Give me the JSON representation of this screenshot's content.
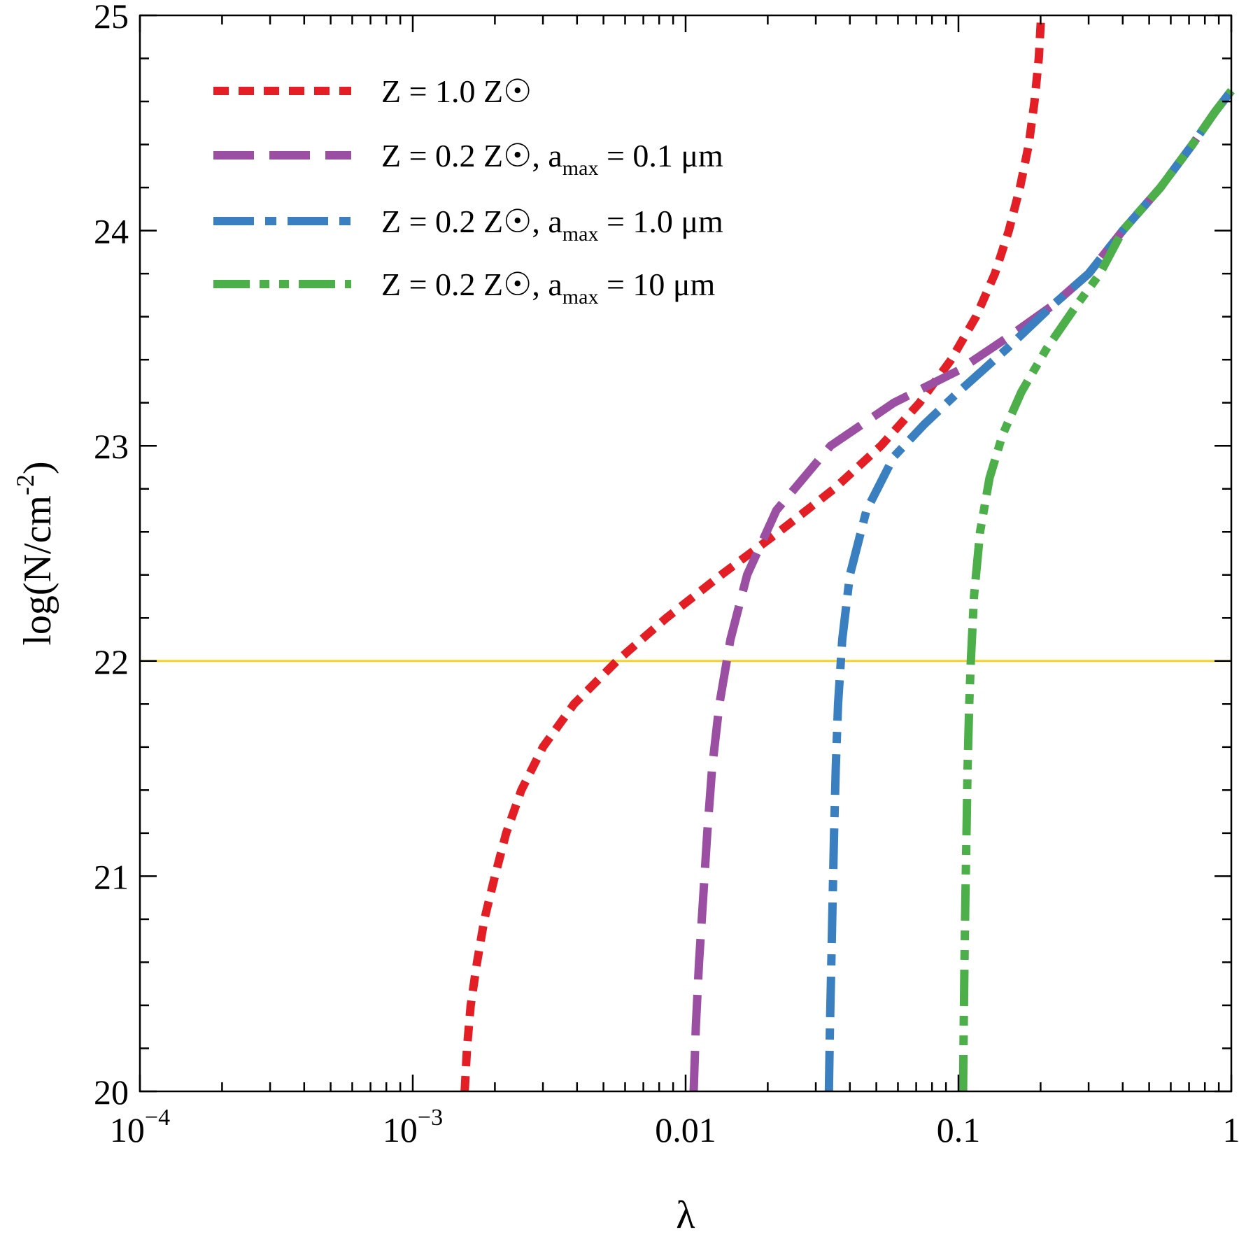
{
  "chart_data": {
    "type": "line",
    "title": "",
    "xlabel": "λ",
    "ylabel": {
      "main": "log(N/cm",
      "sup": "-2",
      "close": ")"
    },
    "xscale": "log",
    "xlim": [
      0.0001,
      1
    ],
    "ylim": [
      20,
      25
    ],
    "x_ticks": [
      {
        "value": 0.0001,
        "base": "10",
        "exp": "−4"
      },
      {
        "value": 0.001,
        "base": "10",
        "exp": "−3"
      },
      {
        "value": 0.01,
        "text": "0.01"
      },
      {
        "value": 0.1,
        "text": "0.1"
      },
      {
        "value": 1,
        "text": "1"
      }
    ],
    "y_ticks": [
      {
        "value": 20,
        "text": "20"
      },
      {
        "value": 21,
        "text": "21"
      },
      {
        "value": 22,
        "text": "22"
      },
      {
        "value": 23,
        "text": "23"
      },
      {
        "value": 24,
        "text": "24"
      },
      {
        "value": 25,
        "text": "25"
      }
    ],
    "reference_line": {
      "y": 22,
      "color": "#f5d327"
    },
    "legend_position": "top-left",
    "series": [
      {
        "name": "Z = 1.0 Z☉",
        "legend": {
          "pre": "Z = 1.0 Z☉",
          "sub": "",
          "post": ""
        },
        "color": "#e31e24",
        "style": "dotted",
        "points": [
          [
            0.00155,
            20.0
          ],
          [
            0.00158,
            20.2
          ],
          [
            0.00163,
            20.4
          ],
          [
            0.00172,
            20.6
          ],
          [
            0.00183,
            20.8
          ],
          [
            0.002,
            21.0
          ],
          [
            0.0022,
            21.2
          ],
          [
            0.0025,
            21.4
          ],
          [
            0.003,
            21.6
          ],
          [
            0.0039,
            21.8
          ],
          [
            0.0056,
            22.0
          ],
          [
            0.0085,
            22.2
          ],
          [
            0.0135,
            22.4
          ],
          [
            0.022,
            22.6
          ],
          [
            0.035,
            22.8
          ],
          [
            0.052,
            23.0
          ],
          [
            0.072,
            23.2
          ],
          [
            0.094,
            23.4
          ],
          [
            0.116,
            23.6
          ],
          [
            0.136,
            23.8
          ],
          [
            0.153,
            24.0
          ],
          [
            0.168,
            24.2
          ],
          [
            0.181,
            24.4
          ],
          [
            0.19,
            24.6
          ],
          [
            0.197,
            24.8
          ],
          [
            0.201,
            25.0
          ]
        ]
      },
      {
        "name": "Z = 0.2 Z☉, amax = 0.1 μm",
        "legend": {
          "pre": "Z = 0.2 Z☉, a",
          "sub": "max",
          "post": " = 0.1 μm"
        },
        "color": "#9b4fa3",
        "style": "dashed",
        "points": [
          [
            0.0107,
            20.0
          ],
          [
            0.0109,
            20.3
          ],
          [
            0.0112,
            20.6
          ],
          [
            0.0116,
            20.9
          ],
          [
            0.012,
            21.2
          ],
          [
            0.0125,
            21.5
          ],
          [
            0.0133,
            21.8
          ],
          [
            0.0146,
            22.1
          ],
          [
            0.0168,
            22.4
          ],
          [
            0.0215,
            22.7
          ],
          [
            0.034,
            23.0
          ],
          [
            0.058,
            23.2
          ],
          [
            0.1,
            23.35
          ],
          [
            0.15,
            23.5
          ],
          [
            0.22,
            23.65
          ],
          [
            0.3,
            23.8
          ],
          [
            0.4,
            24.0
          ],
          [
            0.55,
            24.2
          ],
          [
            0.72,
            24.4
          ],
          [
            0.87,
            24.55
          ],
          [
            1.0,
            24.65
          ]
        ]
      },
      {
        "name": "Z = 0.2 Z☉, amax = 1.0 μm",
        "legend": {
          "pre": "Z = 0.2 Z☉, a",
          "sub": "max",
          "post": " = 1.0 μm"
        },
        "color": "#3a7fbf",
        "style": "dashdot",
        "points": [
          [
            0.0335,
            20.0
          ],
          [
            0.0338,
            20.3
          ],
          [
            0.0342,
            20.6
          ],
          [
            0.0346,
            20.9
          ],
          [
            0.035,
            21.2
          ],
          [
            0.0355,
            21.5
          ],
          [
            0.0362,
            21.8
          ],
          [
            0.0375,
            22.1
          ],
          [
            0.04,
            22.4
          ],
          [
            0.046,
            22.7
          ],
          [
            0.058,
            22.95
          ],
          [
            0.075,
            23.1
          ],
          [
            0.1,
            23.25
          ],
          [
            0.15,
            23.45
          ],
          [
            0.22,
            23.65
          ],
          [
            0.3,
            23.8
          ],
          [
            0.4,
            24.0
          ],
          [
            0.55,
            24.2
          ],
          [
            0.72,
            24.4
          ],
          [
            0.87,
            24.55
          ],
          [
            1.0,
            24.65
          ]
        ]
      },
      {
        "name": "Z = 0.2 Z☉, amax = 10 μm",
        "legend": {
          "pre": "Z = 0.2 Z☉, a",
          "sub": "max",
          "post": " = 10 μm"
        },
        "color": "#4daf4a",
        "style": "dashdotdot",
        "points": [
          [
            0.104,
            20.0
          ],
          [
            0.1045,
            20.3
          ],
          [
            0.1052,
            20.6
          ],
          [
            0.106,
            20.9
          ],
          [
            0.107,
            21.2
          ],
          [
            0.108,
            21.5
          ],
          [
            0.1095,
            21.8
          ],
          [
            0.111,
            22.0
          ],
          [
            0.114,
            22.3
          ],
          [
            0.12,
            22.6
          ],
          [
            0.13,
            22.85
          ],
          [
            0.145,
            23.05
          ],
          [
            0.17,
            23.25
          ],
          [
            0.21,
            23.45
          ],
          [
            0.27,
            23.65
          ],
          [
            0.33,
            23.8
          ],
          [
            0.4,
            24.0
          ],
          [
            0.55,
            24.2
          ],
          [
            0.72,
            24.4
          ],
          [
            0.87,
            24.55
          ],
          [
            1.0,
            24.65
          ]
        ]
      }
    ]
  }
}
